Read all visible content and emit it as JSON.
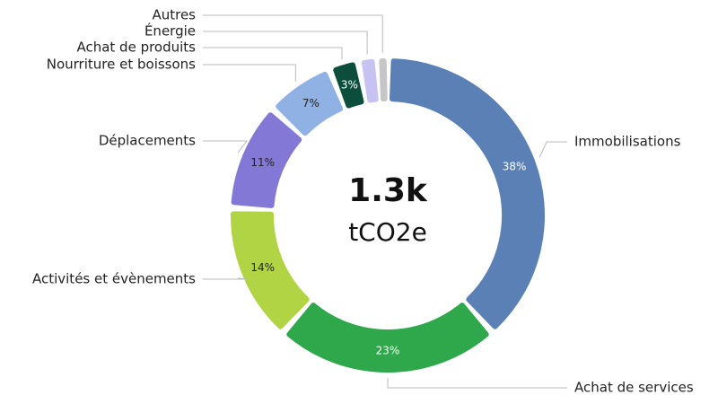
{
  "chart_data": {
    "type": "donut",
    "center_value": "1.3k",
    "center_unit": "tCO2e",
    "categories": [
      "Immobilisations",
      "Achat de services",
      "Activités et évènements",
      "Déplacements",
      "Nourriture et boissons",
      "Achat de produits",
      "Énergie",
      "Autres"
    ],
    "values": [
      38,
      23,
      14,
      11,
      7,
      3,
      2,
      1
    ],
    "value_labels": [
      "38%",
      "23%",
      "14%",
      "11%",
      "7%",
      "3%",
      null,
      null
    ],
    "colors": [
      "#5a80b6",
      "#2ea84b",
      "#b1d444",
      "#8378d6",
      "#8fb1e4",
      "#0c4e3b",
      "#c6c3f3",
      "#c6c6c6"
    ]
  }
}
